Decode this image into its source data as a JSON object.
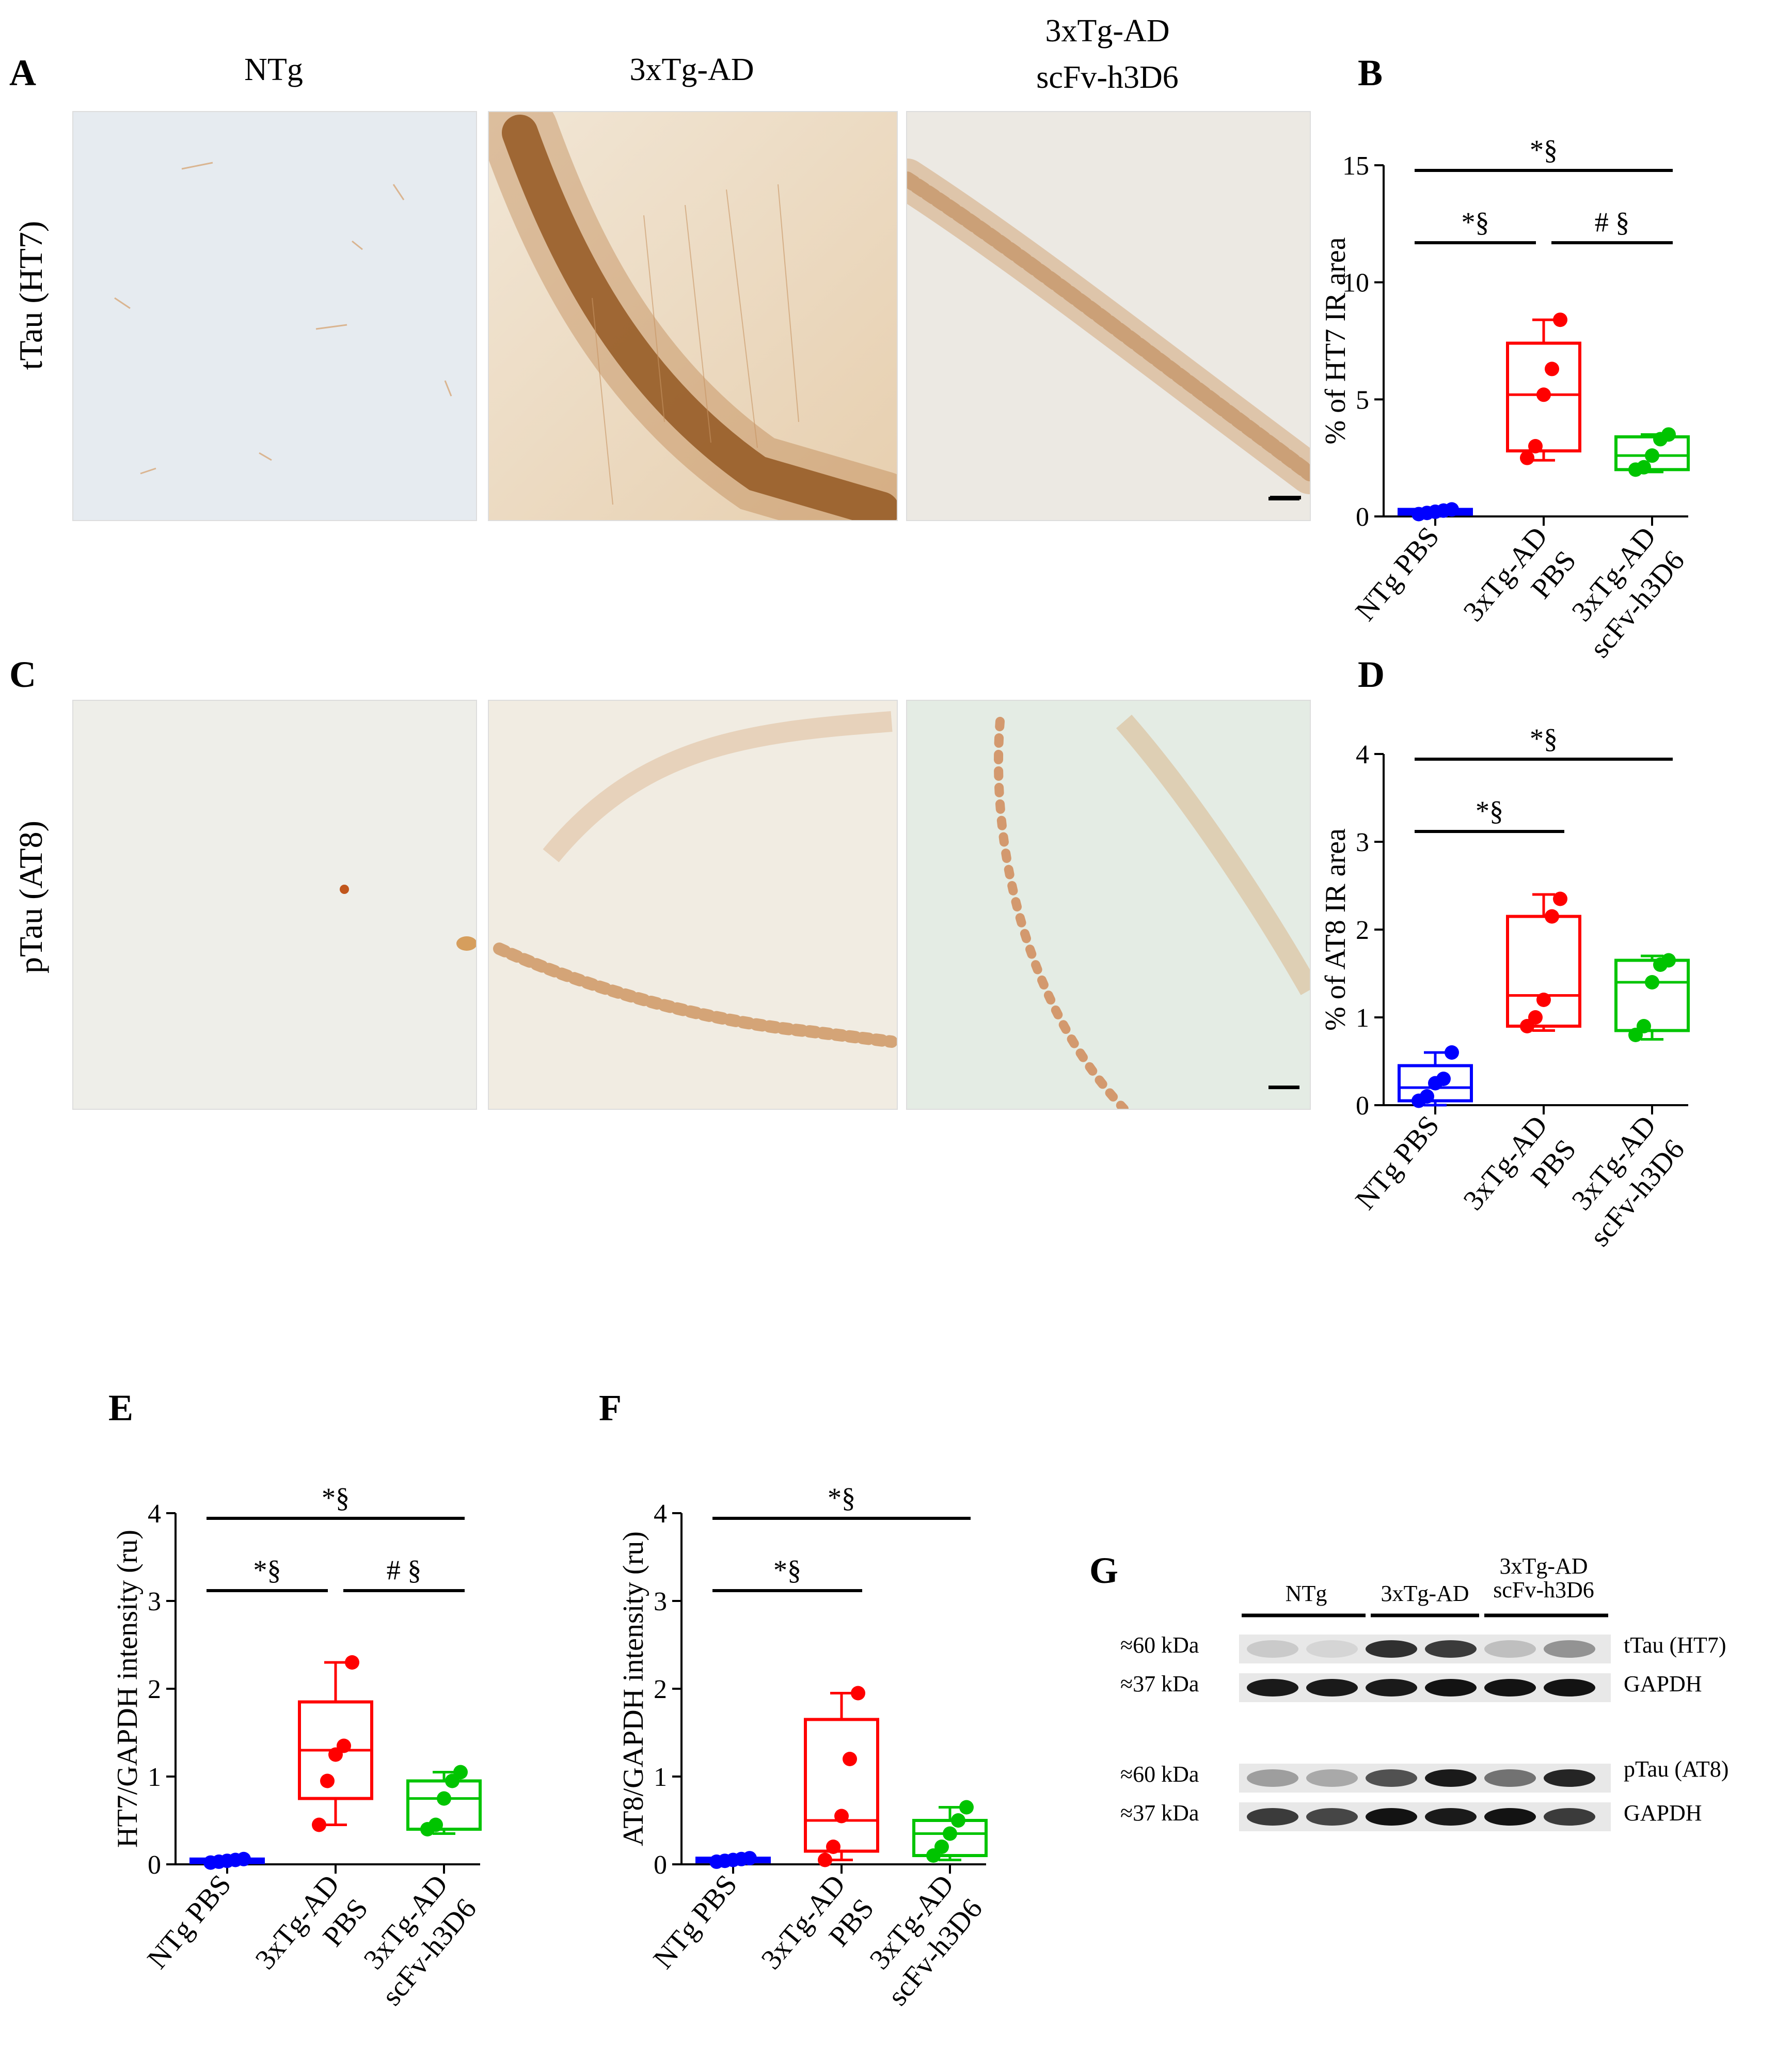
{
  "panels": {
    "A": {
      "letter": "A",
      "columns": [
        "NTg",
        "3xTg-AD",
        "3xTg-AD\nscFv-h3D6"
      ],
      "row_label": "tTau (HT7)"
    },
    "C": {
      "letter": "C",
      "row_label": "pTau (AT8)"
    },
    "B": {
      "letter": "B"
    },
    "D": {
      "letter": "D"
    },
    "E": {
      "letter": "E"
    },
    "F": {
      "letter": "F"
    },
    "G": {
      "letter": "G",
      "groups": [
        "NTg",
        "3xTg-AD",
        "3xTg-AD\nscFv-h3D6"
      ],
      "rows": [
        {
          "mw": "≈60 kDa",
          "label": "tTau (HT7)"
        },
        {
          "mw": "≈37 kDa",
          "label": "GAPDH"
        },
        {
          "mw": "≈60 kDa",
          "label": "pTau (AT8)"
        },
        {
          "mw": "≈37 kDa",
          "label": "GAPDH"
        }
      ]
    }
  },
  "colors": {
    "ntg": "#0000ff",
    "ad": "#ff0000",
    "scfv": "#00c400"
  },
  "chart_data": [
    {
      "id": "B",
      "type": "box",
      "ylabel": "% of HT7 IR area",
      "ylim": [
        0,
        15
      ],
      "yticks": [
        0,
        5,
        10,
        15
      ],
      "categories": [
        "NTg PBS",
        "3xTg-AD\nPBS",
        "3xTg-AD\nscFv-h3D6"
      ],
      "series": [
        {
          "points": [
            0.1,
            0.15,
            0.2,
            0.25,
            0.3
          ],
          "q1": 0.1,
          "median": 0.2,
          "q3": 0.3,
          "min": 0.05,
          "max": 0.35
        },
        {
          "points": [
            2.5,
            3.0,
            5.2,
            6.3,
            8.4
          ],
          "q1": 2.8,
          "median": 5.2,
          "q3": 7.4,
          "min": 2.4,
          "max": 8.4
        },
        {
          "points": [
            2.0,
            2.1,
            2.6,
            3.3,
            3.5
          ],
          "q1": 2.0,
          "median": 2.6,
          "q3": 3.4,
          "min": 1.9,
          "max": 3.5
        }
      ],
      "sig": [
        {
          "from": 0,
          "to": 2,
          "level": 0,
          "text": "*§"
        },
        {
          "from": 0,
          "to": 1,
          "level": 1,
          "text": "*§"
        },
        {
          "from": 1,
          "to": 2,
          "level": 1,
          "text": "# §"
        }
      ]
    },
    {
      "id": "D",
      "type": "box",
      "ylabel": "% of AT8 IR area",
      "ylim": [
        0,
        4
      ],
      "yticks": [
        0,
        1,
        2,
        3,
        4
      ],
      "categories": [
        "NTg PBS",
        "3xTg-AD\nPBS",
        "3xTg-AD\nscFv-h3D6"
      ],
      "series": [
        {
          "points": [
            0.05,
            0.1,
            0.25,
            0.3,
            0.6
          ],
          "q1": 0.05,
          "median": 0.2,
          "q3": 0.45,
          "min": 0.0,
          "max": 0.6
        },
        {
          "points": [
            0.9,
            1.0,
            1.2,
            2.15,
            2.35
          ],
          "q1": 0.9,
          "median": 1.25,
          "q3": 2.15,
          "min": 0.85,
          "max": 2.4
        },
        {
          "points": [
            0.8,
            0.9,
            1.4,
            1.6,
            1.65
          ],
          "q1": 0.85,
          "median": 1.4,
          "q3": 1.65,
          "min": 0.75,
          "max": 1.7
        }
      ],
      "sig": [
        {
          "from": 0,
          "to": 2,
          "level": 0,
          "text": "*§"
        },
        {
          "from": 0,
          "to": 1,
          "level": 1,
          "text": "*§"
        }
      ]
    },
    {
      "id": "E",
      "type": "box",
      "ylabel": "HT7/GAPDH intensity (ru)",
      "ylim": [
        0,
        4
      ],
      "yticks": [
        0,
        1,
        2,
        3,
        4
      ],
      "categories": [
        "NTg PBS",
        "3xTg-AD\nPBS",
        "3xTg-AD\nscFv-h3D6"
      ],
      "series": [
        {
          "points": [
            0.02,
            0.03,
            0.04,
            0.05,
            0.06
          ],
          "q1": 0.02,
          "median": 0.04,
          "q3": 0.06,
          "min": 0.01,
          "max": 0.07
        },
        {
          "points": [
            0.45,
            0.95,
            1.25,
            1.35,
            2.3
          ],
          "q1": 0.75,
          "median": 1.3,
          "q3": 1.85,
          "min": 0.45,
          "max": 2.3
        },
        {
          "points": [
            0.4,
            0.45,
            0.75,
            0.95,
            1.05
          ],
          "q1": 0.4,
          "median": 0.75,
          "q3": 0.95,
          "min": 0.35,
          "max": 1.05
        }
      ],
      "sig": [
        {
          "from": 0,
          "to": 2,
          "level": 0,
          "text": "*§"
        },
        {
          "from": 0,
          "to": 1,
          "level": 1,
          "text": "*§"
        },
        {
          "from": 1,
          "to": 2,
          "level": 1,
          "text": "# §"
        }
      ]
    },
    {
      "id": "F",
      "type": "box",
      "ylabel": "AT8/GAPDH intensity (ru)",
      "ylim": [
        0,
        4
      ],
      "yticks": [
        0,
        1,
        2,
        3,
        4
      ],
      "categories": [
        "NTg PBS",
        "3xTg-AD\nPBS",
        "3xTg-AD\nscFv-h3D6"
      ],
      "series": [
        {
          "points": [
            0.03,
            0.04,
            0.05,
            0.06,
            0.07
          ],
          "q1": 0.03,
          "median": 0.05,
          "q3": 0.07,
          "min": 0.02,
          "max": 0.08
        },
        {
          "points": [
            0.05,
            0.2,
            0.55,
            1.2,
            1.95
          ],
          "q1": 0.15,
          "median": 0.5,
          "q3": 1.65,
          "min": 0.05,
          "max": 1.95
        },
        {
          "points": [
            0.1,
            0.2,
            0.35,
            0.5,
            0.65
          ],
          "q1": 0.1,
          "median": 0.35,
          "q3": 0.5,
          "min": 0.05,
          "max": 0.65
        }
      ],
      "sig": [
        {
          "from": 0,
          "to": 2,
          "level": 0,
          "text": "*§"
        },
        {
          "from": 0,
          "to": 1,
          "level": 1,
          "text": "*§"
        }
      ]
    }
  ]
}
